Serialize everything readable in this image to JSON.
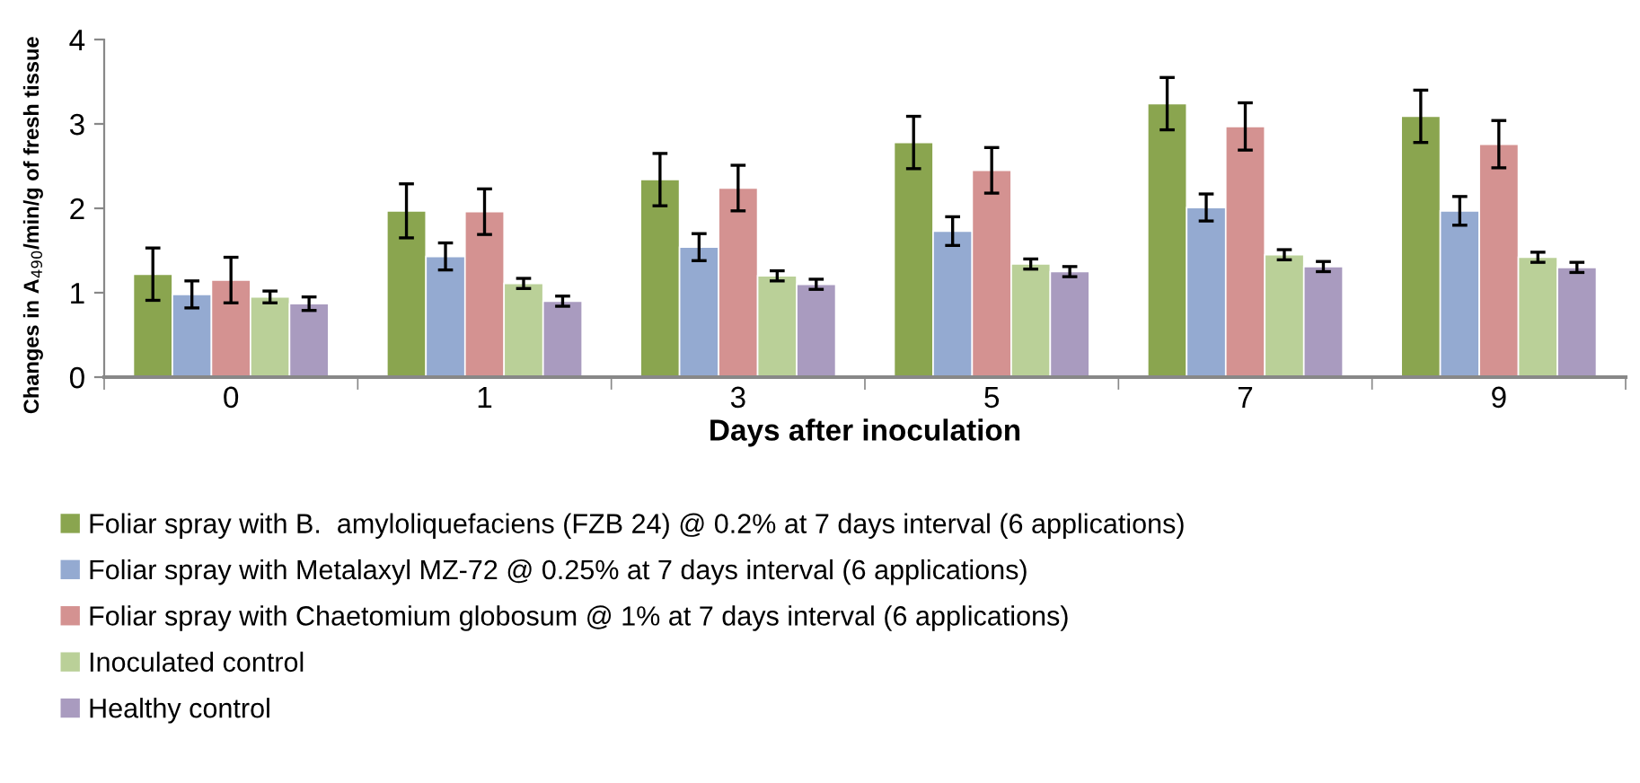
{
  "chart_data": {
    "type": "bar",
    "xlabel": "Days after inoculation",
    "ylabel": "Changes in A$_{490}$/min/g of fresh tissue",
    "categories": [
      "0",
      "1",
      "3",
      "5",
      "7",
      "9"
    ],
    "ylim": [
      0,
      4
    ],
    "yticks": [
      0,
      1,
      2,
      3,
      4
    ],
    "grid": false,
    "legend": "bottom",
    "series": [
      {
        "name": "Foliar spray with B.  amyloliquefaciens (FZB 24) @ 0.2% at 7 days interval (6 applications)",
        "color": "#8aa54f",
        "values": [
          1.22,
          1.97,
          2.34,
          2.78,
          3.24,
          3.09
        ],
        "errors": [
          0.31,
          0.32,
          0.31,
          0.31,
          0.31,
          0.31
        ]
      },
      {
        "name": "Foliar spray with Metalaxyl MZ-72 @ 0.25% at 7 days interval (6 applications)",
        "color": "#94aad1",
        "values": [
          0.98,
          1.43,
          1.54,
          1.73,
          2.01,
          1.97
        ],
        "errors": [
          0.16,
          0.16,
          0.16,
          0.17,
          0.16,
          0.17
        ]
      },
      {
        "name": "Foliar spray with Chaetomium globosum @ 1% at 7 days interval (6 applications)",
        "color": "#d49291",
        "values": [
          1.15,
          1.96,
          2.24,
          2.45,
          2.97,
          2.76
        ],
        "errors": [
          0.27,
          0.27,
          0.27,
          0.27,
          0.28,
          0.28
        ]
      },
      {
        "name": "Inoculated control",
        "color": "#bad098",
        "values": [
          0.95,
          1.11,
          1.2,
          1.34,
          1.45,
          1.42
        ],
        "errors": [
          0.07,
          0.06,
          0.06,
          0.06,
          0.06,
          0.06
        ]
      },
      {
        "name": "Healthy control",
        "color": "#a99bbf",
        "values": [
          0.87,
          0.9,
          1.1,
          1.25,
          1.31,
          1.3
        ],
        "errors": [
          0.08,
          0.06,
          0.06,
          0.06,
          0.06,
          0.06
        ]
      }
    ]
  }
}
